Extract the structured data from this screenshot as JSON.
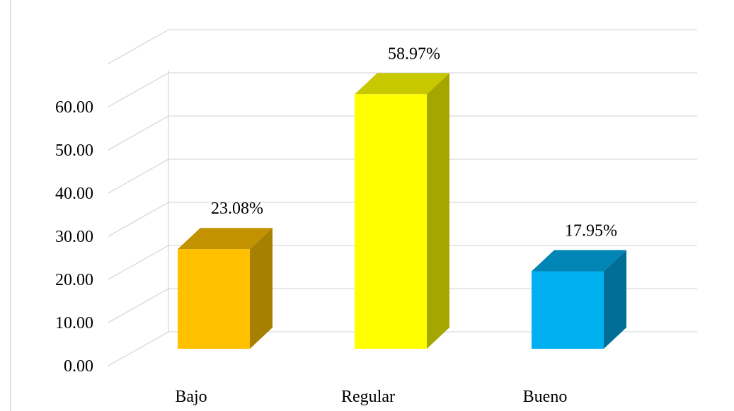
{
  "chart_data": {
    "type": "bar",
    "style": "3d-column",
    "title": "",
    "xlabel": "",
    "ylabel": "",
    "categories": [
      "Bajo",
      "Regular",
      "Bueno"
    ],
    "values": [
      23.08,
      58.97,
      17.95
    ],
    "data_labels": [
      "23.08%",
      "58.97%",
      "17.95%"
    ],
    "ylim": [
      0,
      60
    ],
    "y_ticks": [
      0,
      10,
      20,
      30,
      40,
      50,
      60
    ],
    "y_tick_labels": [
      "0.00",
      "10.00",
      "20.00",
      "30.00",
      "40.00",
      "50.00",
      "60.00"
    ],
    "grid": true,
    "legend": "none",
    "colors": {
      "bars": [
        {
          "front": "#ffc000",
          "top": "#c29200",
          "side": "#a68000"
        },
        {
          "front": "#ffff00",
          "top": "#c8c800",
          "side": "#a6a600"
        },
        {
          "front": "#00b0f0",
          "top": "#0085b5",
          "side": "#006e96"
        }
      ],
      "grid": "#d9d9d9"
    }
  }
}
